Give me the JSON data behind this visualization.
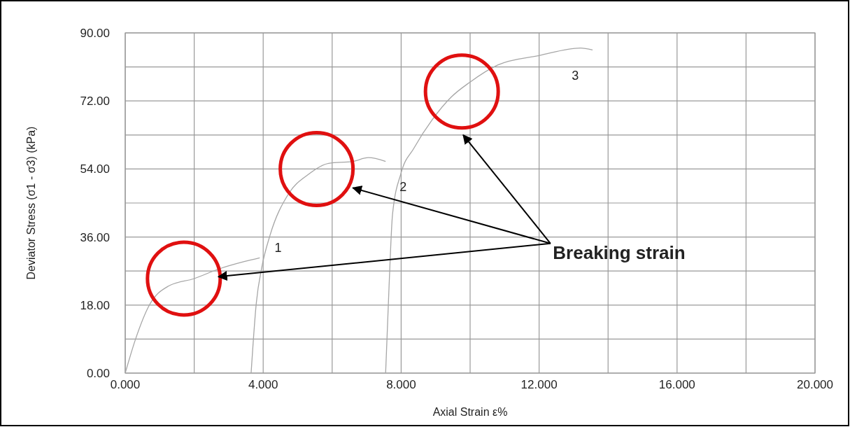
{
  "chart_data": {
    "type": "line",
    "xlabel": "Axial Strain ε%",
    "ylabel": "Deviator Stress (σ1 - σ3)  (kPa)",
    "xlim": [
      0,
      20
    ],
    "ylim": [
      0,
      90
    ],
    "xticks": [
      {
        "value": 0,
        "label": "0.000"
      },
      {
        "value": 2,
        "label": null
      },
      {
        "value": 4,
        "label": "4.000"
      },
      {
        "value": 6,
        "label": null
      },
      {
        "value": 8,
        "label": "8.000"
      },
      {
        "value": 10,
        "label": null
      },
      {
        "value": 12,
        "label": "12.000"
      },
      {
        "value": 14,
        "label": null
      },
      {
        "value": 16,
        "label": "16.000"
      },
      {
        "value": 18,
        "label": null
      },
      {
        "value": 20,
        "label": "20.000"
      }
    ],
    "yticks": [
      {
        "value": 0,
        "label": "0.00"
      },
      {
        "value": 9,
        "label": null
      },
      {
        "value": 18,
        "label": "18.00"
      },
      {
        "value": 27,
        "label": null
      },
      {
        "value": 36,
        "label": "36.00"
      },
      {
        "value": 45,
        "label": null
      },
      {
        "value": 54,
        "label": "54.00"
      },
      {
        "value": 63,
        "label": null
      },
      {
        "value": 72,
        "label": "72.00"
      },
      {
        "value": 81,
        "label": null
      },
      {
        "value": 90,
        "label": "90.00"
      }
    ],
    "grid": true,
    "series": [
      {
        "color": "#a6a6a6",
        "x": [
          0,
          0.3,
          0.7,
          1.25,
          2,
          2.7,
          3.45,
          3.9
        ],
        "values": [
          0,
          9,
          18,
          23,
          25,
          27.5,
          29.5,
          30.5
        ]
      },
      {
        "color": "#a6a6a6",
        "x": [
          3.65,
          3.8,
          3.96,
          4.2,
          4.74,
          5.3,
          5.9,
          6.6,
          7.05,
          7.55
        ],
        "values": [
          0,
          18.5,
          28,
          36.5,
          47.5,
          52.5,
          55.5,
          56,
          57,
          56
        ]
      },
      {
        "color": "#a6a6a6",
        "x": [
          7.55,
          7.65,
          7.75,
          8,
          8.37,
          8.9,
          9.45,
          10,
          10.8,
          12,
          13.2,
          13.55
        ],
        "values": [
          0,
          23,
          42,
          53,
          59.5,
          67,
          73,
          77,
          81.5,
          84,
          86,
          85.5
        ]
      }
    ],
    "annotations": [
      "1",
      "2",
      "3",
      "Breaking strain"
    ]
  }
}
